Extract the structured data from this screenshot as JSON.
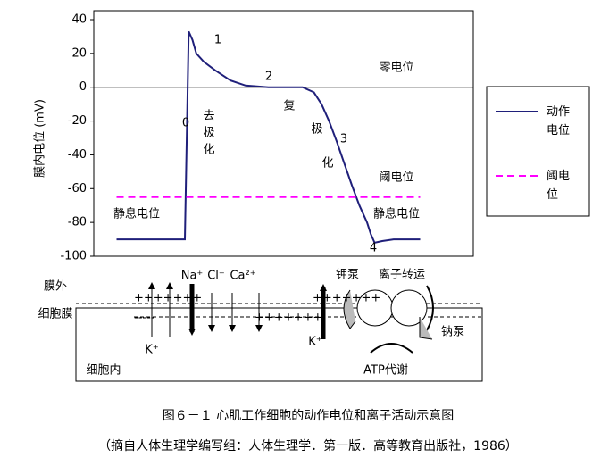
{
  "chart_data": {
    "type": "line",
    "y_label": "膜内电位 (mV)",
    "x": [
      6,
      24,
      25,
      26,
      27,
      29,
      32,
      36,
      40,
      46,
      55,
      58,
      60,
      62,
      64,
      66,
      68,
      70,
      72,
      73,
      74,
      76,
      79,
      86
    ],
    "xlim": [
      0,
      100
    ],
    "series": [
      {
        "name": "动作电位",
        "color": "#1f1f7a",
        "values": [
          -90,
          -90,
          33,
          28,
          20,
          15,
          10,
          4,
          1,
          0,
          0,
          -3,
          -10,
          -20,
          -32,
          -45,
          -58,
          -70,
          -80,
          -87,
          -92,
          -91,
          -90,
          -90
        ]
      },
      {
        "name": "阈电位",
        "color": "#ff00ff",
        "dashed": true,
        "values": [
          -65,
          -65,
          -65,
          -65,
          -65,
          -65,
          -65,
          -65,
          -65,
          -65,
          -65,
          -65,
          -65,
          -65,
          -65,
          -65,
          -65,
          -65,
          -65,
          -65,
          -65,
          -65,
          -65,
          -65
        ]
      }
    ],
    "ylim": [
      -100,
      40
    ],
    "yticks": [
      -100,
      -80,
      -60,
      -40,
      -20,
      0,
      20,
      40
    ],
    "annotations": [
      "1",
      "2",
      "3",
      "4",
      "0",
      "去",
      "极",
      "化",
      "复",
      "极",
      "化",
      "零电位",
      "阈电位",
      "静息电位",
      "静息电位"
    ]
  },
  "diagram": {
    "labels": [
      "膜外",
      "细胞膜",
      "Na⁺",
      "Cl⁻",
      "Ca²⁺",
      "K⁺",
      "K⁺",
      "钾泵",
      "离子转运",
      "钠泵",
      "细胞内",
      "ATP代谢"
    ]
  },
  "caption": {
    "title": "图６－１ 心肌工作细胞的动作电位和离子活动示意图",
    "source": "（摘自人体生理学编写组：人体生理学．第一版．高等教育出版社，1986）"
  }
}
